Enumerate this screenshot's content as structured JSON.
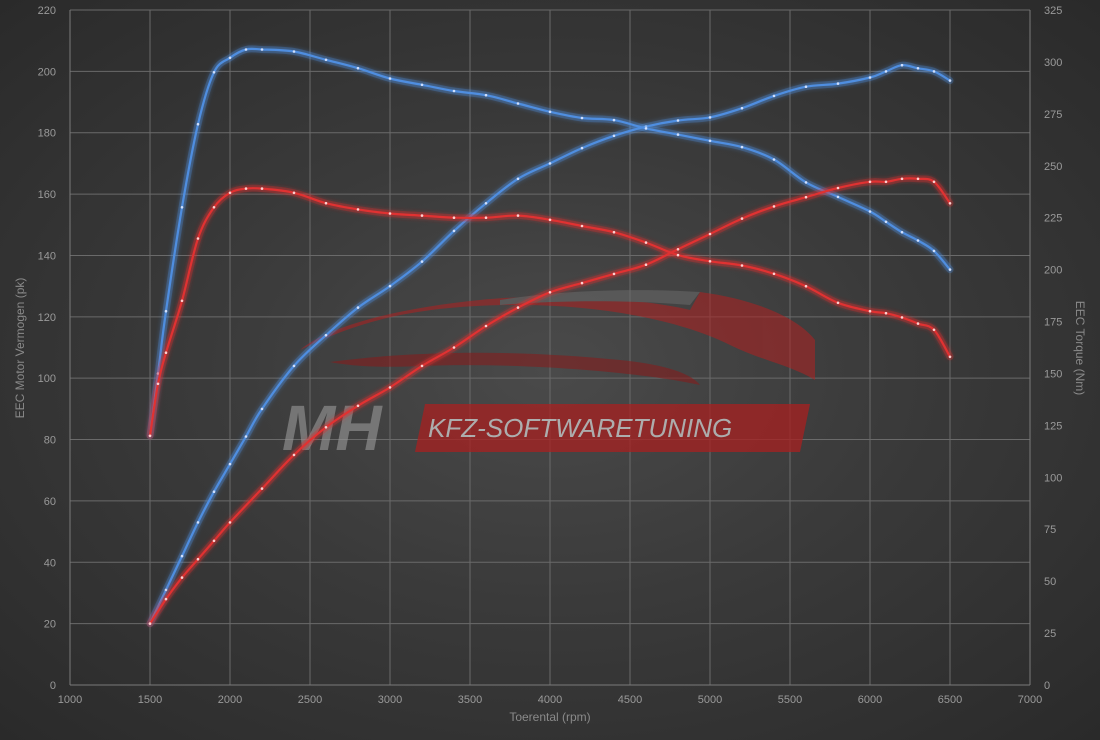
{
  "chart_data": {
    "type": "line",
    "title": "",
    "xlabel": "Toerental (rpm)",
    "ylabel_left": "EEC Motor Vermogen (pk)",
    "ylabel_right": "EEC Torque (Nm)",
    "xlim": [
      1000,
      7000
    ],
    "ylim_left": [
      0,
      220
    ],
    "ylim_right": [
      0,
      325
    ],
    "x_ticks": [
      1000,
      1500,
      2000,
      2500,
      3000,
      3500,
      4000,
      4500,
      5000,
      5500,
      6000,
      6500,
      7000
    ],
    "y_ticks_left": [
      0,
      20,
      40,
      60,
      80,
      100,
      120,
      140,
      160,
      180,
      200,
      220
    ],
    "y_ticks_right": [
      0,
      25,
      50,
      75,
      100,
      125,
      150,
      175,
      200,
      225,
      250,
      275,
      300,
      325
    ],
    "grid": true,
    "legend": "none",
    "watermark": {
      "brand": "MH",
      "text": "KFZ-SOFTWARETUNING"
    },
    "series": [
      {
        "axis": "left",
        "color": "#4f8ee0",
        "x": [
          1500,
          1600,
          1700,
          1800,
          1900,
          2000,
          2100,
          2200,
          2400,
          2600,
          2800,
          3000,
          3200,
          3400,
          3600,
          3800,
          4000,
          4200,
          4400,
          4600,
          4800,
          5000,
          5200,
          5400,
          5600,
          5800,
          6000,
          6100,
          6200,
          6300,
          6400,
          6500
        ],
        "values": [
          20,
          31,
          42,
          53,
          63,
          72,
          81,
          90,
          104,
          114,
          123,
          130,
          138,
          148,
          157,
          165,
          170,
          175,
          179,
          182,
          184,
          185,
          188,
          192,
          195,
          196,
          198,
          200,
          202,
          201,
          200,
          197
        ]
      },
      {
        "axis": "right",
        "color": "#4f8ee0",
        "x": [
          1500,
          1550,
          1600,
          1700,
          1800,
          1900,
          2000,
          2100,
          2200,
          2400,
          2600,
          2800,
          3000,
          3200,
          3400,
          3600,
          3800,
          4000,
          4200,
          4400,
          4600,
          4800,
          5000,
          5200,
          5400,
          5600,
          5800,
          6000,
          6100,
          6200,
          6300,
          6400,
          6500
        ],
        "values": [
          120,
          150,
          180,
          230,
          270,
          295,
          302,
          306,
          306,
          305,
          301,
          297,
          292,
          289,
          286,
          284,
          280,
          276,
          273,
          272,
          268,
          265,
          262,
          259,
          253,
          242,
          235,
          228,
          223,
          218,
          214,
          209,
          200
        ]
      },
      {
        "axis": "left",
        "color": "#e03030",
        "x": [
          1500,
          1600,
          1700,
          1800,
          1900,
          2000,
          2200,
          2400,
          2600,
          2800,
          3000,
          3200,
          3400,
          3600,
          3800,
          4000,
          4200,
          4400,
          4600,
          4800,
          5000,
          5200,
          5400,
          5600,
          5800,
          6000,
          6100,
          6200,
          6300,
          6400,
          6500
        ],
        "values": [
          20,
          28,
          35,
          41,
          47,
          53,
          64,
          75,
          84,
          91,
          97,
          104,
          110,
          117,
          123,
          128,
          131,
          134,
          137,
          142,
          147,
          152,
          156,
          159,
          162,
          164,
          164,
          165,
          165,
          164,
          157
        ]
      },
      {
        "axis": "right",
        "color": "#e03030",
        "x": [
          1500,
          1550,
          1600,
          1700,
          1800,
          1900,
          2000,
          2100,
          2200,
          2400,
          2600,
          2800,
          3000,
          3200,
          3400,
          3600,
          3800,
          4000,
          4200,
          4400,
          4600,
          4800,
          5000,
          5200,
          5400,
          5600,
          5800,
          6000,
          6100,
          6200,
          6300,
          6400,
          6500
        ],
        "values": [
          120,
          145,
          160,
          185,
          215,
          230,
          237,
          239,
          239,
          237,
          232,
          229,
          227,
          226,
          225,
          225,
          226,
          224,
          221,
          218,
          213,
          207,
          204,
          202,
          198,
          192,
          184,
          180,
          179,
          177,
          174,
          171,
          158
        ]
      }
    ]
  }
}
